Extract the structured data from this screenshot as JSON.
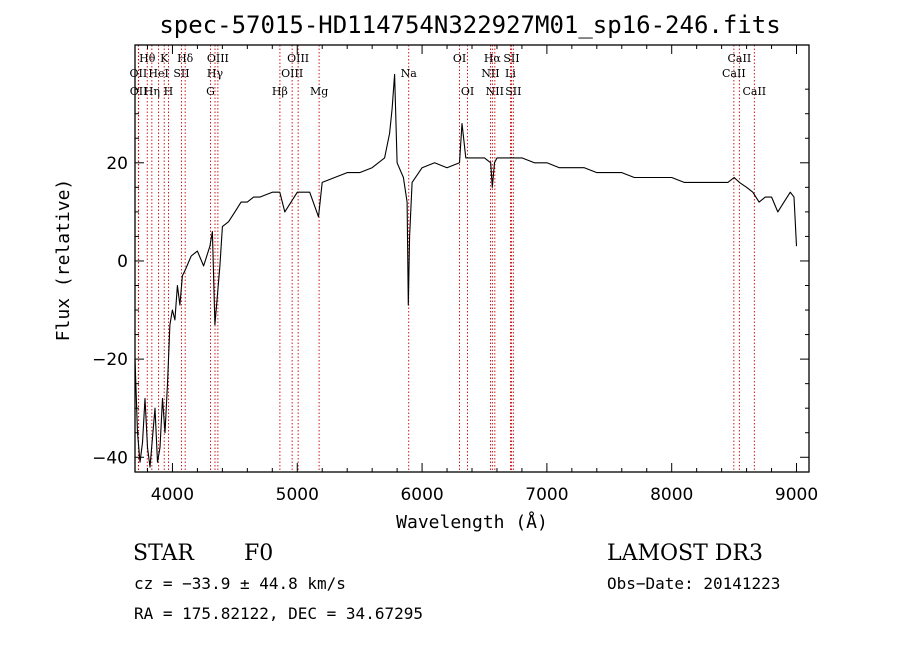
{
  "chart_data": {
    "type": "line",
    "title": "spec-57015-HD114754N322927M01_sp16-246.fits",
    "xlabel": "Wavelength (Å)",
    "ylabel": "Flux (relative)",
    "xlim": [
      3700,
      9100
    ],
    "ylim": [
      -43,
      44
    ],
    "x_ticks": [
      4000,
      5000,
      6000,
      7000,
      8000,
      9000
    ],
    "x_tick_labels": [
      "4000",
      "5000",
      "6000",
      "7000",
      "8000",
      "9000"
    ],
    "y_ticks": [
      -40,
      -20,
      0,
      20
    ],
    "y_tick_labels": [
      "−40",
      "−20",
      "0",
      "20"
    ],
    "series": [
      {
        "name": "spectrum",
        "x": [
          3700,
          3720,
          3740,
          3760,
          3780,
          3800,
          3820,
          3840,
          3860,
          3880,
          3900,
          3920,
          3940,
          3960,
          3980,
          4000,
          4020,
          4040,
          4060,
          4080,
          4100,
          4150,
          4200,
          4250,
          4300,
          4320,
          4340,
          4360,
          4380,
          4400,
          4450,
          4500,
          4550,
          4600,
          4650,
          4700,
          4800,
          4860,
          4900,
          5000,
          5100,
          5170,
          5200,
          5300,
          5400,
          5500,
          5600,
          5700,
          5740,
          5760,
          5780,
          5800,
          5850,
          5880,
          5890,
          5900,
          5920,
          6000,
          6100,
          6200,
          6300,
          6320,
          6350,
          6400,
          6500,
          6550,
          6563,
          6580,
          6600,
          6700,
          6800,
          6900,
          7000,
          7100,
          7200,
          7300,
          7400,
          7500,
          7600,
          7700,
          7800,
          7900,
          8000,
          8100,
          8200,
          8300,
          8400,
          8450,
          8500,
          8542,
          8600,
          8650,
          8700,
          8750,
          8800,
          8850,
          8900,
          8950,
          8980,
          9000
        ],
        "y": [
          -20,
          -35,
          -41,
          -37,
          -28,
          -38,
          -42,
          -36,
          -30,
          -41,
          -38,
          -28,
          -35,
          -25,
          -13,
          -10,
          -12,
          -5,
          -9,
          -3,
          -2,
          1,
          2,
          -1,
          3,
          6,
          -13,
          -7,
          -1,
          7,
          8,
          10,
          12,
          12,
          13,
          13,
          14,
          14,
          10,
          14,
          14,
          9,
          16,
          17,
          18,
          18,
          19,
          21,
          26,
          31,
          38,
          20,
          17,
          12,
          -9,
          5,
          16,
          19,
          20,
          19,
          20,
          28,
          21,
          21,
          21,
          20,
          15,
          20,
          21,
          21,
          21,
          20,
          20,
          19,
          19,
          19,
          18,
          18,
          18,
          17,
          17,
          17,
          17,
          16,
          16,
          16,
          16,
          16,
          17,
          16,
          15,
          14,
          12,
          13,
          13,
          10,
          12,
          14,
          13,
          3
        ]
      }
    ],
    "line_annotations": [
      {
        "label": "Hθ",
        "wavelength": 3798,
        "row": 1
      },
      {
        "label": "OII",
        "wavelength": 3727,
        "row": 2
      },
      {
        "label": "OII",
        "wavelength": 3729,
        "row": 3
      },
      {
        "label": "HeI",
        "wavelength": 3889,
        "row": 2
      },
      {
        "label": "Hη",
        "wavelength": 3835,
        "row": 3
      },
      {
        "label": "K",
        "wavelength": 3934,
        "row": 1
      },
      {
        "label": "H",
        "wavelength": 3968,
        "row": 3
      },
      {
        "label": "SII",
        "wavelength": 4072,
        "row": 2
      },
      {
        "label": "Hδ",
        "wavelength": 4102,
        "row": 1
      },
      {
        "label": "OIII",
        "wavelength": 4364,
        "row": 1
      },
      {
        "label": "Hγ",
        "wavelength": 4341,
        "row": 2
      },
      {
        "label": "G",
        "wavelength": 4305,
        "row": 3
      },
      {
        "label": "Hβ",
        "wavelength": 4861,
        "row": 3
      },
      {
        "label": "OIII",
        "wavelength": 5007,
        "row": 1
      },
      {
        "label": "OIII",
        "wavelength": 4959,
        "row": 2
      },
      {
        "label": "Mg",
        "wavelength": 5175,
        "row": 3
      },
      {
        "label": "Na",
        "wavelength": 5893,
        "row": 2
      },
      {
        "label": "OI",
        "wavelength": 6300,
        "row": 1
      },
      {
        "label": "OI",
        "wavelength": 6364,
        "row": 3
      },
      {
        "label": "Hα",
        "wavelength": 6563,
        "row": 1
      },
      {
        "label": "NII",
        "wavelength": 6548,
        "row": 2
      },
      {
        "label": "NII",
        "wavelength": 6583,
        "row": 3
      },
      {
        "label": "SII",
        "wavelength": 6716,
        "row": 1
      },
      {
        "label": "Li",
        "wavelength": 6708,
        "row": 2
      },
      {
        "label": "SII",
        "wavelength": 6731,
        "row": 3
      },
      {
        "label": "CaII",
        "wavelength": 8542,
        "row": 1
      },
      {
        "label": "CaII",
        "wavelength": 8498,
        "row": 2
      },
      {
        "label": "CaII",
        "wavelength": 8662,
        "row": 3
      }
    ]
  },
  "footer": {
    "object_class": "STAR",
    "subclass": "F0",
    "survey": "LAMOST DR3",
    "redshift": "cz = −33.9 ± 44.8 km/s",
    "obs_date": "Obs−Date: 20141223",
    "coords": "RA = 175.82122, DEC =  34.67295"
  },
  "colors": {
    "line": "#000000",
    "marker_lines": "#cc0000",
    "axis": "#000000"
  }
}
